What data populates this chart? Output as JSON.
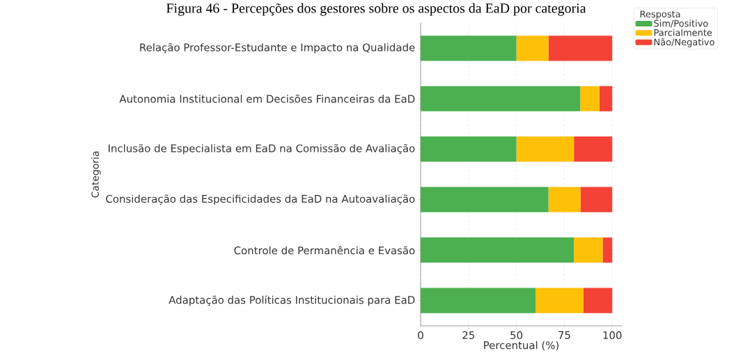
{
  "chart_data": {
    "type": "bar",
    "orientation": "horizontal",
    "stacked": true,
    "title": "Figura 46 - Percepções dos gestores sobre os aspectos da EaD por categoria",
    "xlabel": "Percentual (%)",
    "ylabel": "Categoria",
    "legend_title": "Resposta",
    "categories": [
      "Relação Professor-Estudante e Impacto na Qualidade",
      "Autonomia Institucional em Decisões Financeiras da EaD",
      "Inclusão de Especialista em EaD na Comissão de Avaliação",
      "Consideração das Especificidades da EaD na Autoavaliação",
      "Controle de Permanência e Evasão",
      "Adaptação das Políticas Institucionais para EaD"
    ],
    "series": [
      {
        "name": "Sim/Positivo",
        "color": "#4caf50",
        "values": [
          50,
          83.3,
          50,
          66.7,
          80,
          60
        ]
      },
      {
        "name": "Parcialmente",
        "color": "#ffc107",
        "values": [
          16.7,
          10,
          30,
          16.7,
          15,
          25
        ]
      },
      {
        "name": "Não/Negativo",
        "color": "#f44336",
        "values": [
          33.3,
          6.7,
          20,
          16.6,
          5,
          15
        ]
      }
    ],
    "xlim": [
      0,
      105
    ],
    "xticks": [
      0,
      25,
      50,
      75,
      100
    ],
    "grid": true,
    "legend": "top right"
  }
}
